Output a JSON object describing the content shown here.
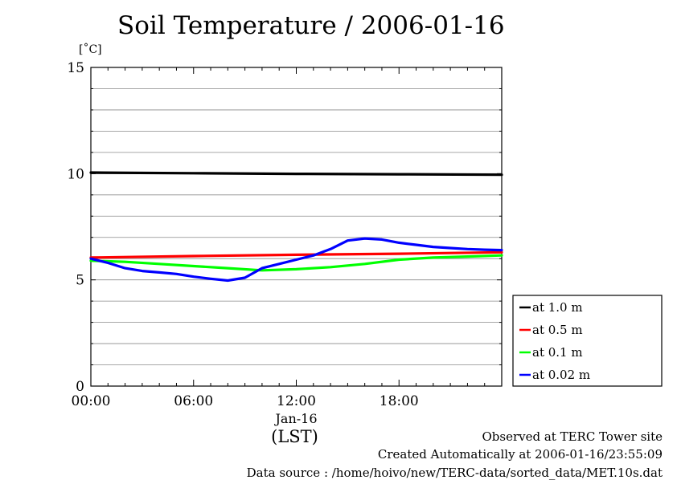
{
  "chart_data": {
    "type": "line",
    "title": "Soil Temperature / 2006-01-16",
    "ylabel": "[˚C]",
    "xlabel": "(LST)",
    "date_label": "Jan-16",
    "ylim": [
      0,
      15
    ],
    "xlim": [
      0,
      24
    ],
    "yticks": [
      0,
      5,
      10,
      15
    ],
    "xticks": [
      {
        "value": 0,
        "label": "00:00"
      },
      {
        "value": 6,
        "label": "06:00"
      },
      {
        "value": 12,
        "label": "12:00"
      },
      {
        "value": 18,
        "label": "18:00"
      }
    ],
    "grid": true,
    "legend_position": "bottom-right outside",
    "series": [
      {
        "name": "at 1.0 m",
        "color": "#000000",
        "x": [
          0,
          6,
          12,
          18,
          24
        ],
        "y": [
          10.05,
          10.02,
          9.99,
          9.97,
          9.95
        ]
      },
      {
        "name": "at 0.5 m",
        "color": "#ff0000",
        "x": [
          0,
          6,
          12,
          18,
          24
        ],
        "y": [
          6.05,
          6.12,
          6.18,
          6.23,
          6.3
        ]
      },
      {
        "name": "at 0.1 m",
        "color": "#00ff00",
        "x": [
          0,
          2,
          4,
          6,
          8,
          10,
          12,
          14,
          16,
          18,
          20,
          22,
          24
        ],
        "y": [
          5.9,
          5.85,
          5.75,
          5.65,
          5.55,
          5.45,
          5.5,
          5.6,
          5.75,
          5.95,
          6.05,
          6.1,
          6.15
        ]
      },
      {
        "name": "at 0.02 m",
        "color": "#0000ff",
        "x": [
          0,
          1,
          2,
          3,
          4,
          5,
          6,
          7,
          8,
          9,
          10,
          11,
          12,
          13,
          14,
          15,
          16,
          17,
          18,
          19,
          20,
          21,
          22,
          23,
          24
        ],
        "y": [
          6.0,
          5.8,
          5.55,
          5.42,
          5.35,
          5.28,
          5.15,
          5.05,
          4.97,
          5.1,
          5.55,
          5.75,
          5.95,
          6.15,
          6.45,
          6.85,
          6.95,
          6.9,
          6.75,
          6.65,
          6.55,
          6.5,
          6.45,
          6.42,
          6.4
        ]
      }
    ]
  },
  "footer": {
    "line1": "Observed at TERC Tower site",
    "line2": "Created Automatically at 2006-01-16/23:55:09",
    "line3": "Data source : /home/hoivo/new/TERC-data/sorted_data/MET.10s.dat"
  }
}
